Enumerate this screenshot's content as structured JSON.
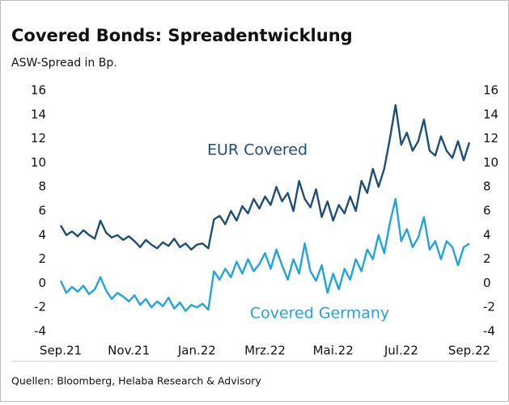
{
  "chart_data": {
    "type": "line",
    "title": "Covered Bonds: Spreadentwicklung",
    "subtitle": "ASW-Spread in Bp.",
    "source": "Quellen: Bloomberg, Helaba Research & Advisory",
    "categories": [
      "Sep.21",
      null,
      null,
      null,
      null,
      null,
      null,
      null,
      null,
      null,
      null,
      null,
      "Nov.21",
      null,
      null,
      null,
      null,
      null,
      null,
      null,
      null,
      null,
      null,
      null,
      "Jan.22",
      null,
      null,
      null,
      null,
      null,
      null,
      null,
      null,
      null,
      null,
      null,
      "Mrz.22",
      null,
      null,
      null,
      null,
      null,
      null,
      null,
      null,
      null,
      null,
      null,
      "Mai.22",
      null,
      null,
      null,
      null,
      null,
      null,
      null,
      null,
      null,
      null,
      null,
      "Jul.22",
      null,
      null,
      null,
      null,
      null,
      null,
      null,
      null,
      null,
      null,
      null,
      "Sep.22"
    ],
    "series": [
      {
        "name": "EUR Covered",
        "color": "#1b4f7a",
        "values": [
          4.8,
          4.0,
          4.3,
          3.9,
          4.4,
          4.0,
          3.7,
          5.2,
          4.2,
          3.8,
          4.0,
          3.6,
          3.9,
          3.5,
          3.0,
          3.6,
          3.2,
          2.9,
          3.4,
          3.1,
          3.7,
          3.0,
          3.3,
          2.8,
          3.2,
          3.3,
          2.9,
          5.3,
          5.6,
          4.9,
          6.0,
          5.2,
          6.4,
          5.8,
          7.0,
          6.2,
          7.2,
          6.5,
          8.0,
          6.8,
          7.5,
          6.0,
          8.5,
          7.0,
          6.3,
          7.8,
          5.5,
          6.8,
          5.2,
          6.5,
          5.8,
          7.2,
          6.0,
          8.5,
          7.5,
          9.5,
          8.0,
          9.5,
          12.0,
          14.8,
          11.5,
          12.5,
          11.0,
          11.8,
          13.6,
          11.0,
          10.6,
          12.2,
          11.0,
          10.4,
          11.8,
          10.2,
          11.7
        ]
      },
      {
        "name": "Covered Germany",
        "color": "#1ea5e0",
        "values": [
          0.2,
          -0.8,
          -0.3,
          -0.7,
          -0.2,
          -0.9,
          -0.5,
          0.5,
          -0.6,
          -1.3,
          -0.8,
          -1.1,
          -1.5,
          -1.0,
          -1.8,
          -1.3,
          -2.0,
          -1.5,
          -1.9,
          -1.2,
          -2.1,
          -1.6,
          -2.3,
          -1.8,
          -2.0,
          -1.7,
          -2.2,
          1.0,
          0.3,
          1.2,
          0.5,
          1.8,
          0.8,
          2.0,
          1.0,
          1.6,
          2.5,
          1.2,
          2.8,
          1.5,
          0.3,
          2.0,
          0.8,
          3.3,
          1.0,
          0.2,
          1.5,
          -0.8,
          0.8,
          -0.5,
          1.2,
          0.3,
          2.0,
          1.0,
          2.8,
          2.0,
          4.0,
          2.5,
          5.0,
          7.0,
          3.5,
          4.5,
          3.0,
          3.8,
          5.5,
          2.8,
          3.5,
          2.0,
          3.5,
          3.0,
          1.5,
          3.0,
          3.3
        ]
      }
    ],
    "annotations": [
      {
        "text": "EUR Covered"
      },
      {
        "text": "Covered Germany"
      }
    ],
    "ylim": [
      -4,
      16
    ],
    "yticks": [
      -4,
      -2,
      0,
      2,
      4,
      6,
      8,
      10,
      12,
      14,
      16
    ],
    "y2lim": [
      -4,
      16
    ],
    "y2ticks": [
      -4,
      -2,
      0,
      2,
      4,
      6,
      8,
      10,
      12,
      14,
      16
    ],
    "grid": false
  }
}
